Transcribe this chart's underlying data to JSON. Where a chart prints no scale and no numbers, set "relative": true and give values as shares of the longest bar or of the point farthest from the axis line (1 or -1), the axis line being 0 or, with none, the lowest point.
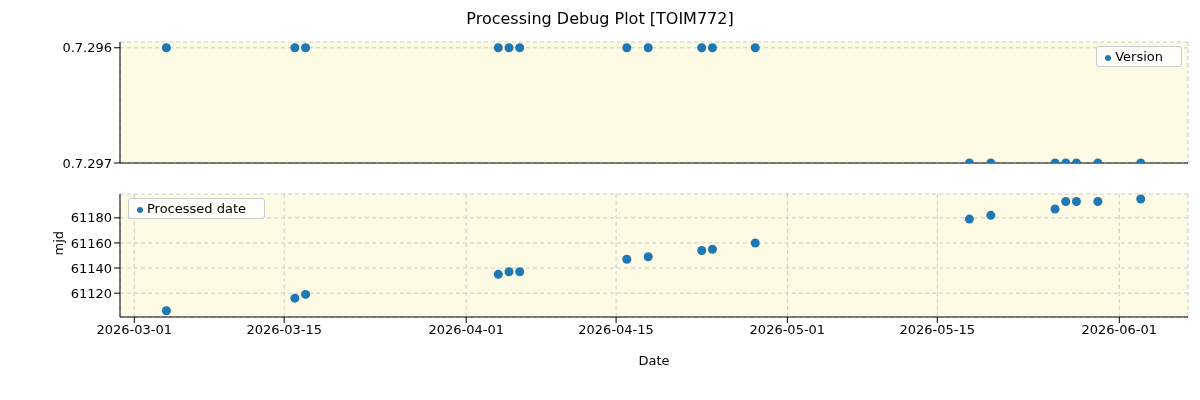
{
  "chart_data": [
    {
      "type": "scatter",
      "title": "Processing Debug Plot [TOIM772]",
      "x": [
        "2026-03-04",
        "2026-03-16",
        "2026-03-17",
        "2026-04-04",
        "2026-04-05",
        "2026-04-06",
        "2026-04-16",
        "2026-04-18",
        "2026-04-23",
        "2026-04-24",
        "2026-04-28",
        "2026-05-18",
        "2026-05-20",
        "2026-05-26",
        "2026-05-27",
        "2026-05-28",
        "2026-05-30",
        "2026-06-03"
      ],
      "relative": true,
      "annotations": [
        "0.7.296",
        "0.7.297"
      ],
      "series": [
        {
          "name": "Version",
          "color": "#1f77b4",
          "values": [
            1,
            1,
            1,
            1,
            1,
            1,
            1,
            1,
            1,
            1,
            1,
            0,
            0,
            0,
            0,
            0,
            0,
            0
          ]
        }
      ],
      "xlim": [
        "2026-02-27T16:00",
        "2026-06-07T10:00"
      ],
      "xticks": [
        "2026-03-01",
        "2026-03-15",
        "2026-04-01",
        "2026-04-15",
        "2026-05-01",
        "2026-05-15",
        "2026-06-01"
      ],
      "tick_labels": "y",
      "grid": true,
      "legend": "top right",
      "marker": "circle"
    },
    {
      "type": "scatter",
      "xlabel": "Date",
      "ylabel": "mjd",
      "x": [
        "2026-03-04",
        "2026-03-16",
        "2026-03-17",
        "2026-04-04",
        "2026-04-05",
        "2026-04-06",
        "2026-04-16",
        "2026-04-18",
        "2026-04-23",
        "2026-04-24",
        "2026-04-28",
        "2026-05-18",
        "2026-05-20",
        "2026-05-26",
        "2026-05-27",
        "2026-05-28",
        "2026-05-30",
        "2026-06-03"
      ],
      "series": [
        {
          "name": "Processed date",
          "color": "#1f77b4",
          "values": [
            61106,
            61116,
            61119,
            61135,
            61137,
            61137,
            61147,
            61149,
            61154,
            61155,
            61160,
            61179,
            61182,
            61187,
            61193,
            61193,
            61193,
            61195
          ]
        }
      ],
      "xlim": [
        "2026-02-27T16:00",
        "2026-06-07T10:00"
      ],
      "xticks": [
        "2026-03-01",
        "2026-03-15",
        "2026-04-01",
        "2026-04-15",
        "2026-05-01",
        "2026-05-15",
        "2026-06-01"
      ],
      "ylim": [
        61101,
        61199
      ],
      "yticks": [
        61120,
        61140,
        61160,
        61180
      ],
      "grid": true,
      "legend": "top left",
      "marker": "circle"
    }
  ]
}
